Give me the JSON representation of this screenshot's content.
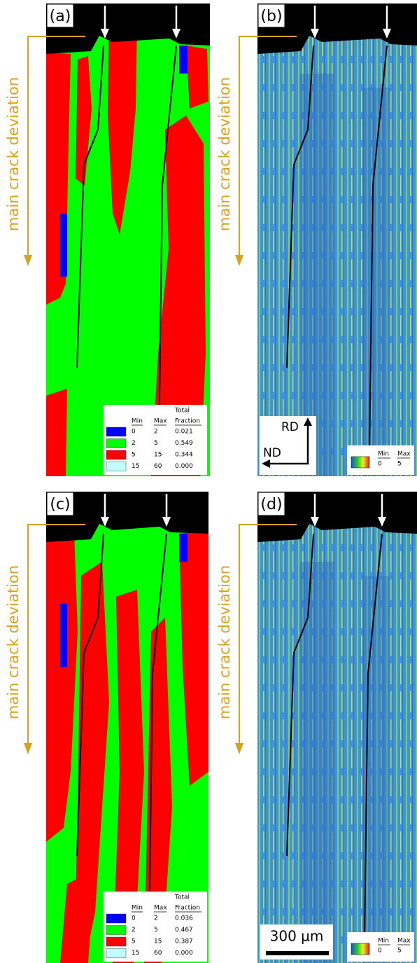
{
  "panels": [
    {
      "label": "(a)",
      "annotation": "main crack deviation",
      "legend": {
        "min": "Min",
        "max": "Max",
        "total": "Total",
        "fraction": "Fraction",
        "rows": [
          [
            "0",
            "2",
            "0.021"
          ],
          [
            "2",
            "5",
            "0.549"
          ],
          [
            "5",
            "15",
            "0.344"
          ],
          [
            "15",
            "60",
            "0.000"
          ]
        ]
      }
    },
    {
      "label": "(b)",
      "annotation": "main crack deviation",
      "directions": {
        "vertical": "RD",
        "horizontal": "ND"
      },
      "colorbar": {
        "min": "Min",
        "min_value": 0,
        "max": "Max",
        "max_value": 5
      }
    },
    {
      "label": "(c)",
      "annotation": "main crack deviation",
      "legend": {
        "min": "Min",
        "max": "Max",
        "total": "Total",
        "fraction": "Fraction",
        "rows": [
          [
            "0",
            "2",
            "0.036"
          ],
          [
            "2",
            "5",
            "0.467"
          ],
          [
            "5",
            "15",
            "0.387"
          ],
          [
            "15",
            "60",
            "0.000"
          ]
        ]
      }
    },
    {
      "label": "(d)",
      "annotation": "main crack deviation",
      "scale_bar": "300 µm",
      "colorbar": {
        "min": "Min",
        "min_value": 0,
        "max": "Max",
        "max_value": 5
      }
    }
  ]
}
